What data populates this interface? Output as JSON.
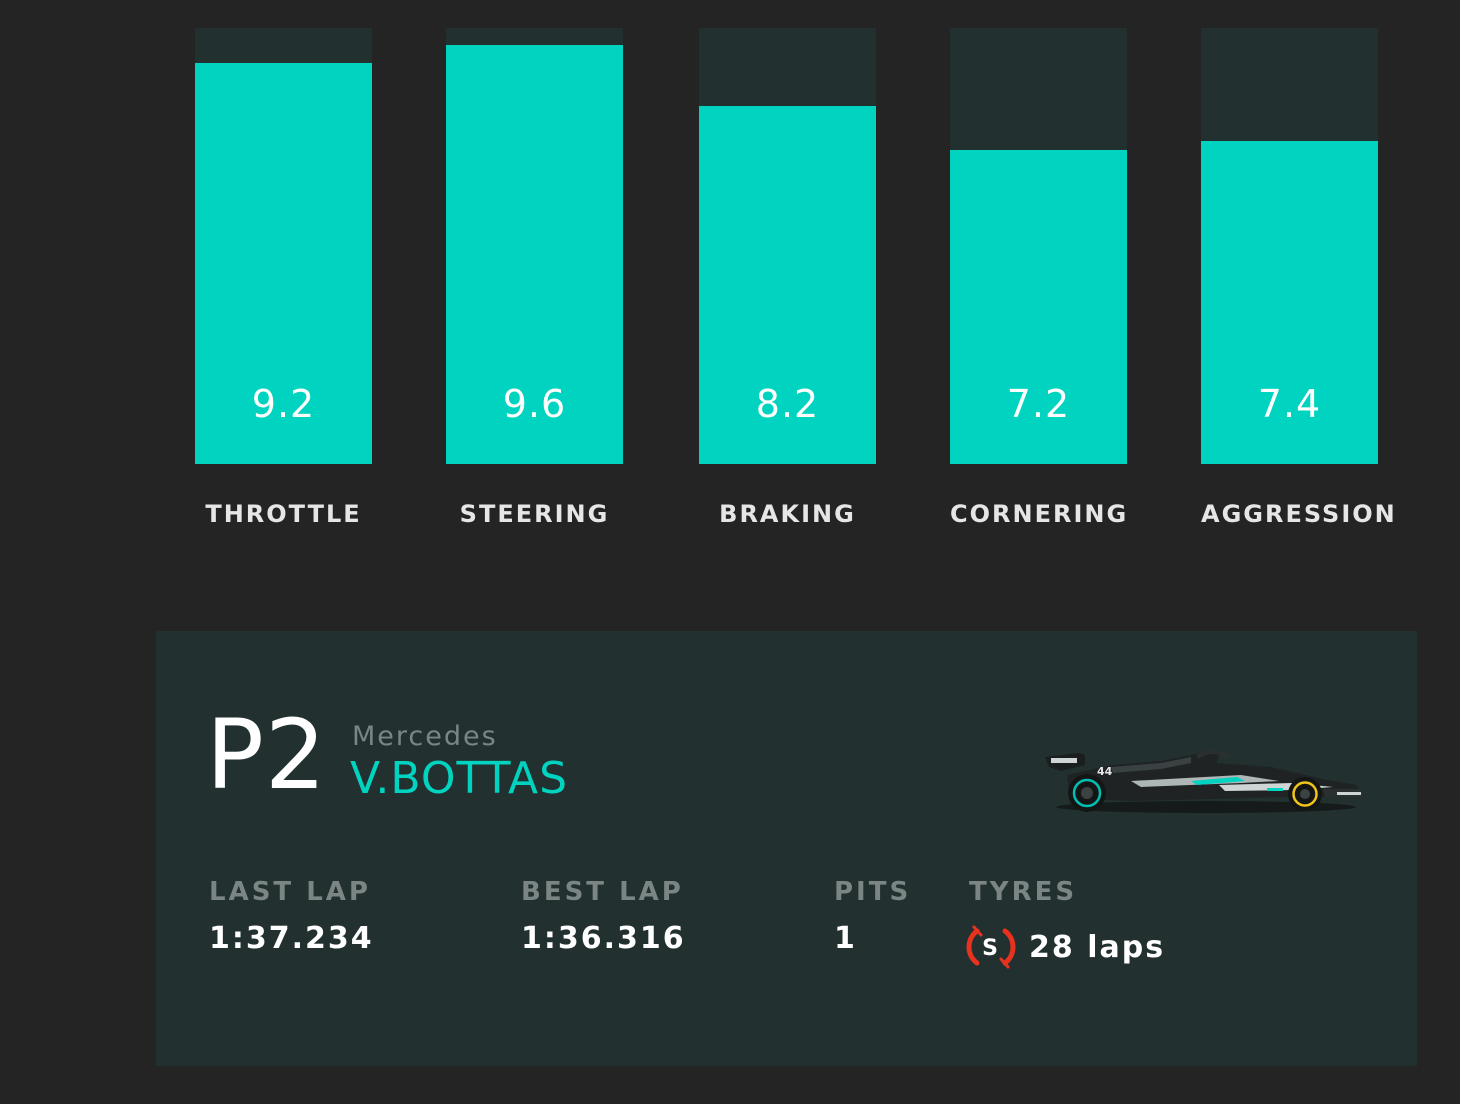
{
  "chart_data": {
    "type": "bar",
    "categories": [
      "THROTTLE",
      "STEERING",
      "BRAKING",
      "CORNERING",
      "AGGRESSION"
    ],
    "values": [
      9.2,
      9.6,
      8.2,
      7.2,
      7.4
    ],
    "ylim": [
      0,
      10
    ],
    "grid": false,
    "colors": {
      "fill": "#00d3bf",
      "track": "#223130",
      "background": "#242424"
    }
  },
  "bars": [
    {
      "label": "THROTTLE",
      "value_text": "9.2"
    },
    {
      "label": "STEERING",
      "value_text": "9.6"
    },
    {
      "label": "BRAKING",
      "value_text": "8.2"
    },
    {
      "label": "CORNERING",
      "value_text": "7.2"
    },
    {
      "label": "AGGRESSION",
      "value_text": "7.4"
    }
  ],
  "driver": {
    "position": "P2",
    "team": "Mercedes",
    "name": "V.BOTTAS",
    "car_icon": "f1-car-icon",
    "stats": {
      "last_lap_label": "LAST LAP",
      "last_lap": "1:37.234",
      "best_lap_label": "BEST LAP",
      "best_lap": "1:36.316",
      "pits_label": "PITS",
      "pits": "1",
      "tyres_label": "TYRES",
      "tyre_compound": "S",
      "tyre_icon": "soft-tyre-icon",
      "tyre_color": "#e8321e",
      "tyres": "28 laps"
    }
  }
}
